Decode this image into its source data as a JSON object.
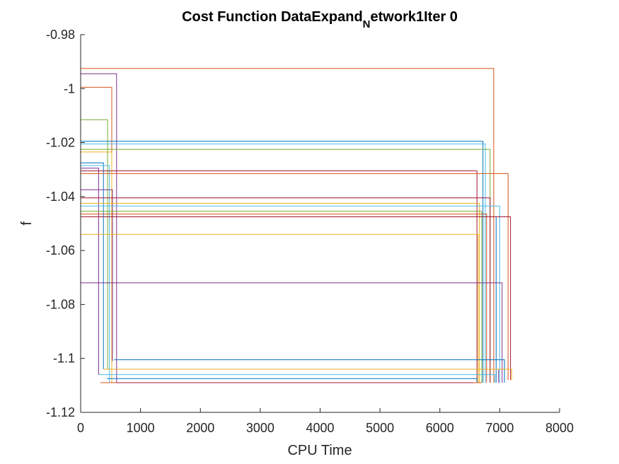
{
  "chart_data": {
    "type": "line",
    "title": {
      "prefix": "Cost Function DataExpand",
      "subscript": "N",
      "suffix": "etwork1Iter 0"
    },
    "xlabel": "CPU Time",
    "ylabel": "f",
    "xlim": [
      0,
      8000
    ],
    "ylim": [
      -1.12,
      -0.98
    ],
    "xticks": [
      0,
      1000,
      2000,
      3000,
      4000,
      5000,
      6000,
      7000,
      8000
    ],
    "xtick_labels": [
      "0",
      "1000",
      "2000",
      "3000",
      "4000",
      "5000",
      "6000",
      "7000",
      "8000"
    ],
    "yticks": [
      -0.98,
      -1.0,
      -1.02,
      -1.04,
      -1.06,
      -1.08,
      -1.1,
      -1.12
    ],
    "ytick_labels": [
      "-0.98",
      "-1",
      "-1.02",
      "-1.04",
      "-1.06",
      "-1.08",
      "-1.1",
      "-1.12"
    ],
    "grid": false,
    "colors": [
      "#0072BD",
      "#D95319",
      "#EDB120",
      "#7E2F8E",
      "#77AC30",
      "#4DBEEE",
      "#A2142F"
    ],
    "series": [
      {
        "color": "#D95319",
        "x": [
          0,
          6900,
          6900
        ],
        "y": [
          -0.9925,
          -0.9925,
          -1.109
        ]
      },
      {
        "color": "#7E2F8E",
        "x": [
          0,
          600,
          600
        ],
        "y": [
          -0.9945,
          -0.9945,
          -1.109
        ]
      },
      {
        "color": "#D95319",
        "x": [
          0,
          520,
          520
        ],
        "y": [
          -0.9995,
          -0.9995,
          -1.109
        ]
      },
      {
        "color": "#77AC30",
        "x": [
          0,
          450,
          450
        ],
        "y": [
          -1.0115,
          -1.0115,
          -1.104
        ]
      },
      {
        "color": "#0072BD",
        "x": [
          0,
          6720,
          6720
        ],
        "y": [
          -1.0195,
          -1.0195,
          -1.109
        ]
      },
      {
        "color": "#4DBEEE",
        "x": [
          0,
          6760,
          6760
        ],
        "y": [
          -1.0205,
          -1.0205,
          -1.109
        ]
      },
      {
        "color": "#77AC30",
        "x": [
          0,
          6840,
          6840
        ],
        "y": [
          -1.0225,
          -1.0225,
          -1.109
        ]
      },
      {
        "color": "#EDB120",
        "x": [
          0,
          520,
          520
        ],
        "y": [
          -1.0235,
          -1.0235,
          -1.109
        ]
      },
      {
        "color": "#0072BD",
        "x": [
          0,
          380,
          380
        ],
        "y": [
          -1.0275,
          -1.0275,
          -1.104
        ]
      },
      {
        "color": "#4DBEEE",
        "x": [
          0,
          480,
          480
        ],
        "y": [
          -1.0285,
          -1.0285,
          -1.109
        ]
      },
      {
        "color": "#7E2F8E",
        "x": [
          0,
          300,
          300
        ],
        "y": [
          -1.0295,
          -1.0295,
          -1.106
        ]
      },
      {
        "color": "#A2142F",
        "x": [
          0,
          6620,
          6620
        ],
        "y": [
          -1.0305,
          -1.0305,
          -1.109
        ]
      },
      {
        "color": "#D95319",
        "x": [
          0,
          7140,
          7140
        ],
        "y": [
          -1.0315,
          -1.0315,
          -1.108
        ]
      },
      {
        "color": "#7E2F8E",
        "x": [
          0,
          530,
          530
        ],
        "y": [
          -1.0375,
          -1.0375,
          -1.101
        ]
      },
      {
        "color": "#A2142F",
        "x": [
          0,
          6840,
          6840
        ],
        "y": [
          -1.0405,
          -1.0405,
          -1.109
        ]
      },
      {
        "color": "#EDB120",
        "x": [
          0,
          6660,
          6660
        ],
        "y": [
          -1.0425,
          -1.0425,
          -1.109
        ]
      },
      {
        "color": "#4DBEEE",
        "x": [
          0,
          7000,
          7000
        ],
        "y": [
          -1.0435,
          -1.0435,
          -1.109
        ]
      },
      {
        "color": "#77AC30",
        "x": [
          0,
          6700,
          6700
        ],
        "y": [
          -1.0455,
          -1.0455,
          -1.109
        ]
      },
      {
        "color": "#D95319",
        "x": [
          0,
          6780,
          6780
        ],
        "y": [
          -1.0465,
          -1.0465,
          -1.109
        ]
      },
      {
        "color": "#0072BD",
        "x": [
          0,
          6940,
          6940
        ],
        "y": [
          -1.0475,
          -1.0475,
          -1.109
        ]
      },
      {
        "color": "#A2142F",
        "x": [
          0,
          7180,
          7180
        ],
        "y": [
          -1.0475,
          -1.0475,
          -1.108
        ]
      },
      {
        "color": "#EDB120",
        "x": [
          0,
          6640,
          6640
        ],
        "y": [
          -1.054,
          -1.054,
          -1.109
        ]
      },
      {
        "color": "#7E2F8E",
        "x": [
          0,
          7040,
          7040
        ],
        "y": [
          -1.072,
          -1.072,
          -1.109
        ]
      },
      {
        "color": "#0072BD",
        "x": [
          560,
          7080,
          7080
        ],
        "y": [
          -1.1005,
          -1.1005,
          -1.109
        ]
      },
      {
        "color": "#7E2F8E",
        "x": [
          420,
          6980,
          6980
        ],
        "y": [
          -1.104,
          -1.104,
          -1.109
        ]
      },
      {
        "color": "#EDB120",
        "x": [
          380,
          7200,
          7200
        ],
        "y": [
          -1.104,
          -1.104,
          -1.108
        ]
      },
      {
        "color": "#4DBEEE",
        "x": [
          300,
          6920,
          6920
        ],
        "y": [
          -1.106,
          -1.106,
          -1.109
        ]
      },
      {
        "color": "#0072BD",
        "x": [
          440,
          6620,
          6620
        ],
        "y": [
          -1.1075,
          -1.1075,
          -1.109
        ]
      },
      {
        "color": "#D95319",
        "x": [
          330,
          6700
        ],
        "y": [
          -1.109,
          -1.109
        ]
      },
      {
        "color": "#A2142F",
        "x": [
          600,
          6560
        ],
        "y": [
          -1.109,
          -1.109
        ]
      }
    ]
  }
}
